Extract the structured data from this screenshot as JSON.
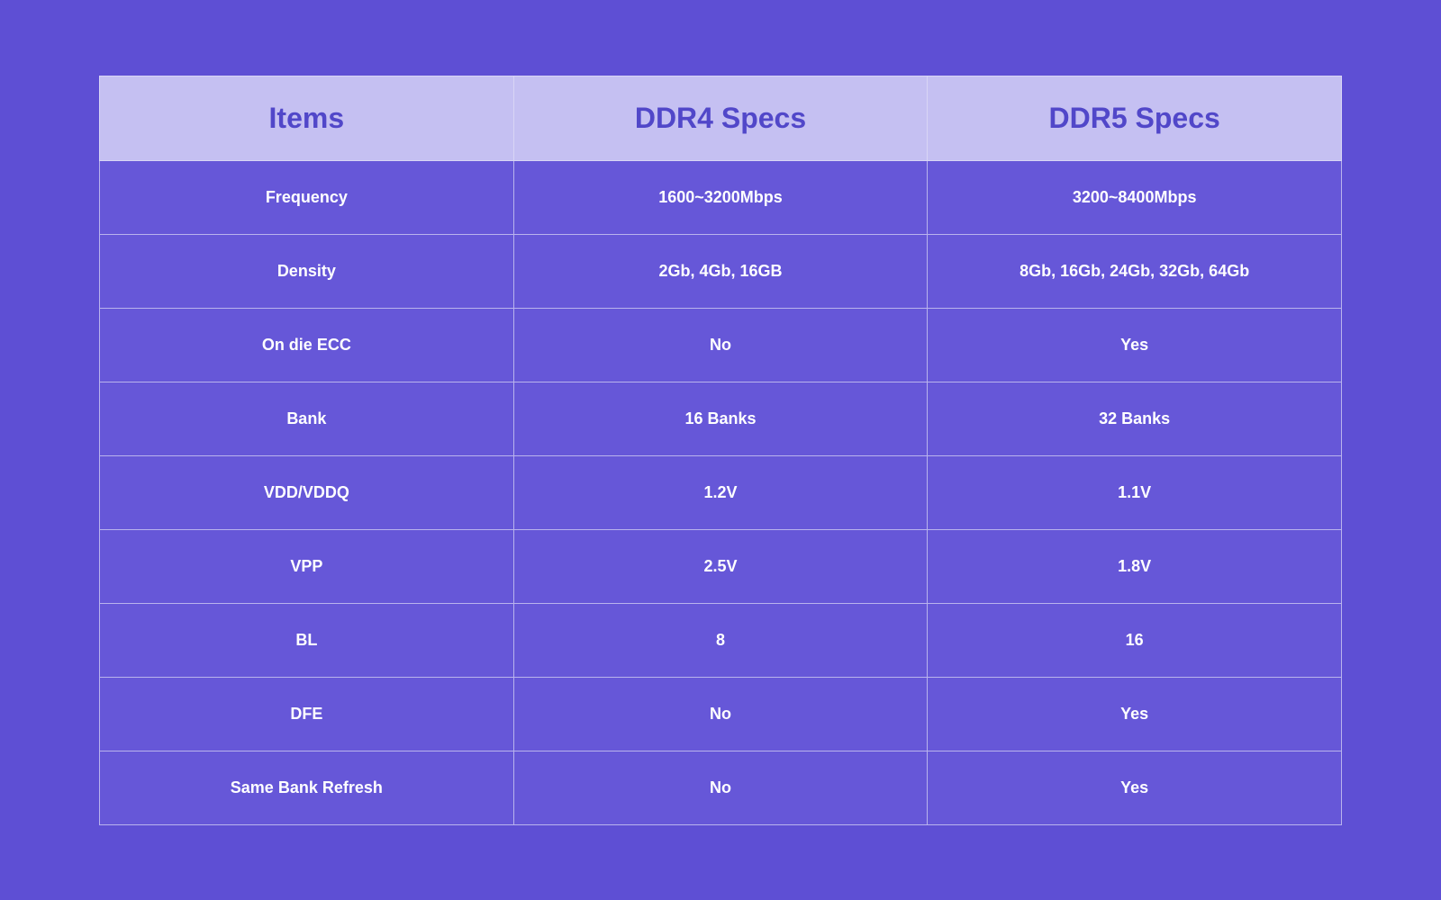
{
  "table": {
    "type": "table",
    "background_color": "#5e4fd4",
    "header_bg_color": "#c5c0f2",
    "header_text_color": "#5147c9",
    "header_fontsize": 32,
    "header_fontweight": 700,
    "cell_bg_color": "#6657d8",
    "cell_text_color": "#ffffff",
    "cell_fontsize": 18,
    "cell_fontweight": 700,
    "border_color_header": "#d8d5f5",
    "border_color_body": "#b9b3ed",
    "columns": [
      "Items",
      "DDR4 Specs",
      "DDR5 Specs"
    ],
    "rows": [
      [
        "Frequency",
        "1600~3200Mbps",
        "3200~8400Mbps"
      ],
      [
        "Density",
        "2Gb, 4Gb, 16GB",
        "8Gb, 16Gb, 24Gb, 32Gb, 64Gb"
      ],
      [
        "On die ECC",
        "No",
        "Yes"
      ],
      [
        "Bank",
        "16 Banks",
        "32 Banks"
      ],
      [
        "VDD/VDDQ",
        "1.2V",
        "1.1V"
      ],
      [
        "VPP",
        "2.5V",
        "1.8V"
      ],
      [
        "BL",
        "8",
        "16"
      ],
      [
        "DFE",
        "No",
        "Yes"
      ],
      [
        "Same Bank Refresh",
        "No",
        "Yes"
      ]
    ]
  }
}
